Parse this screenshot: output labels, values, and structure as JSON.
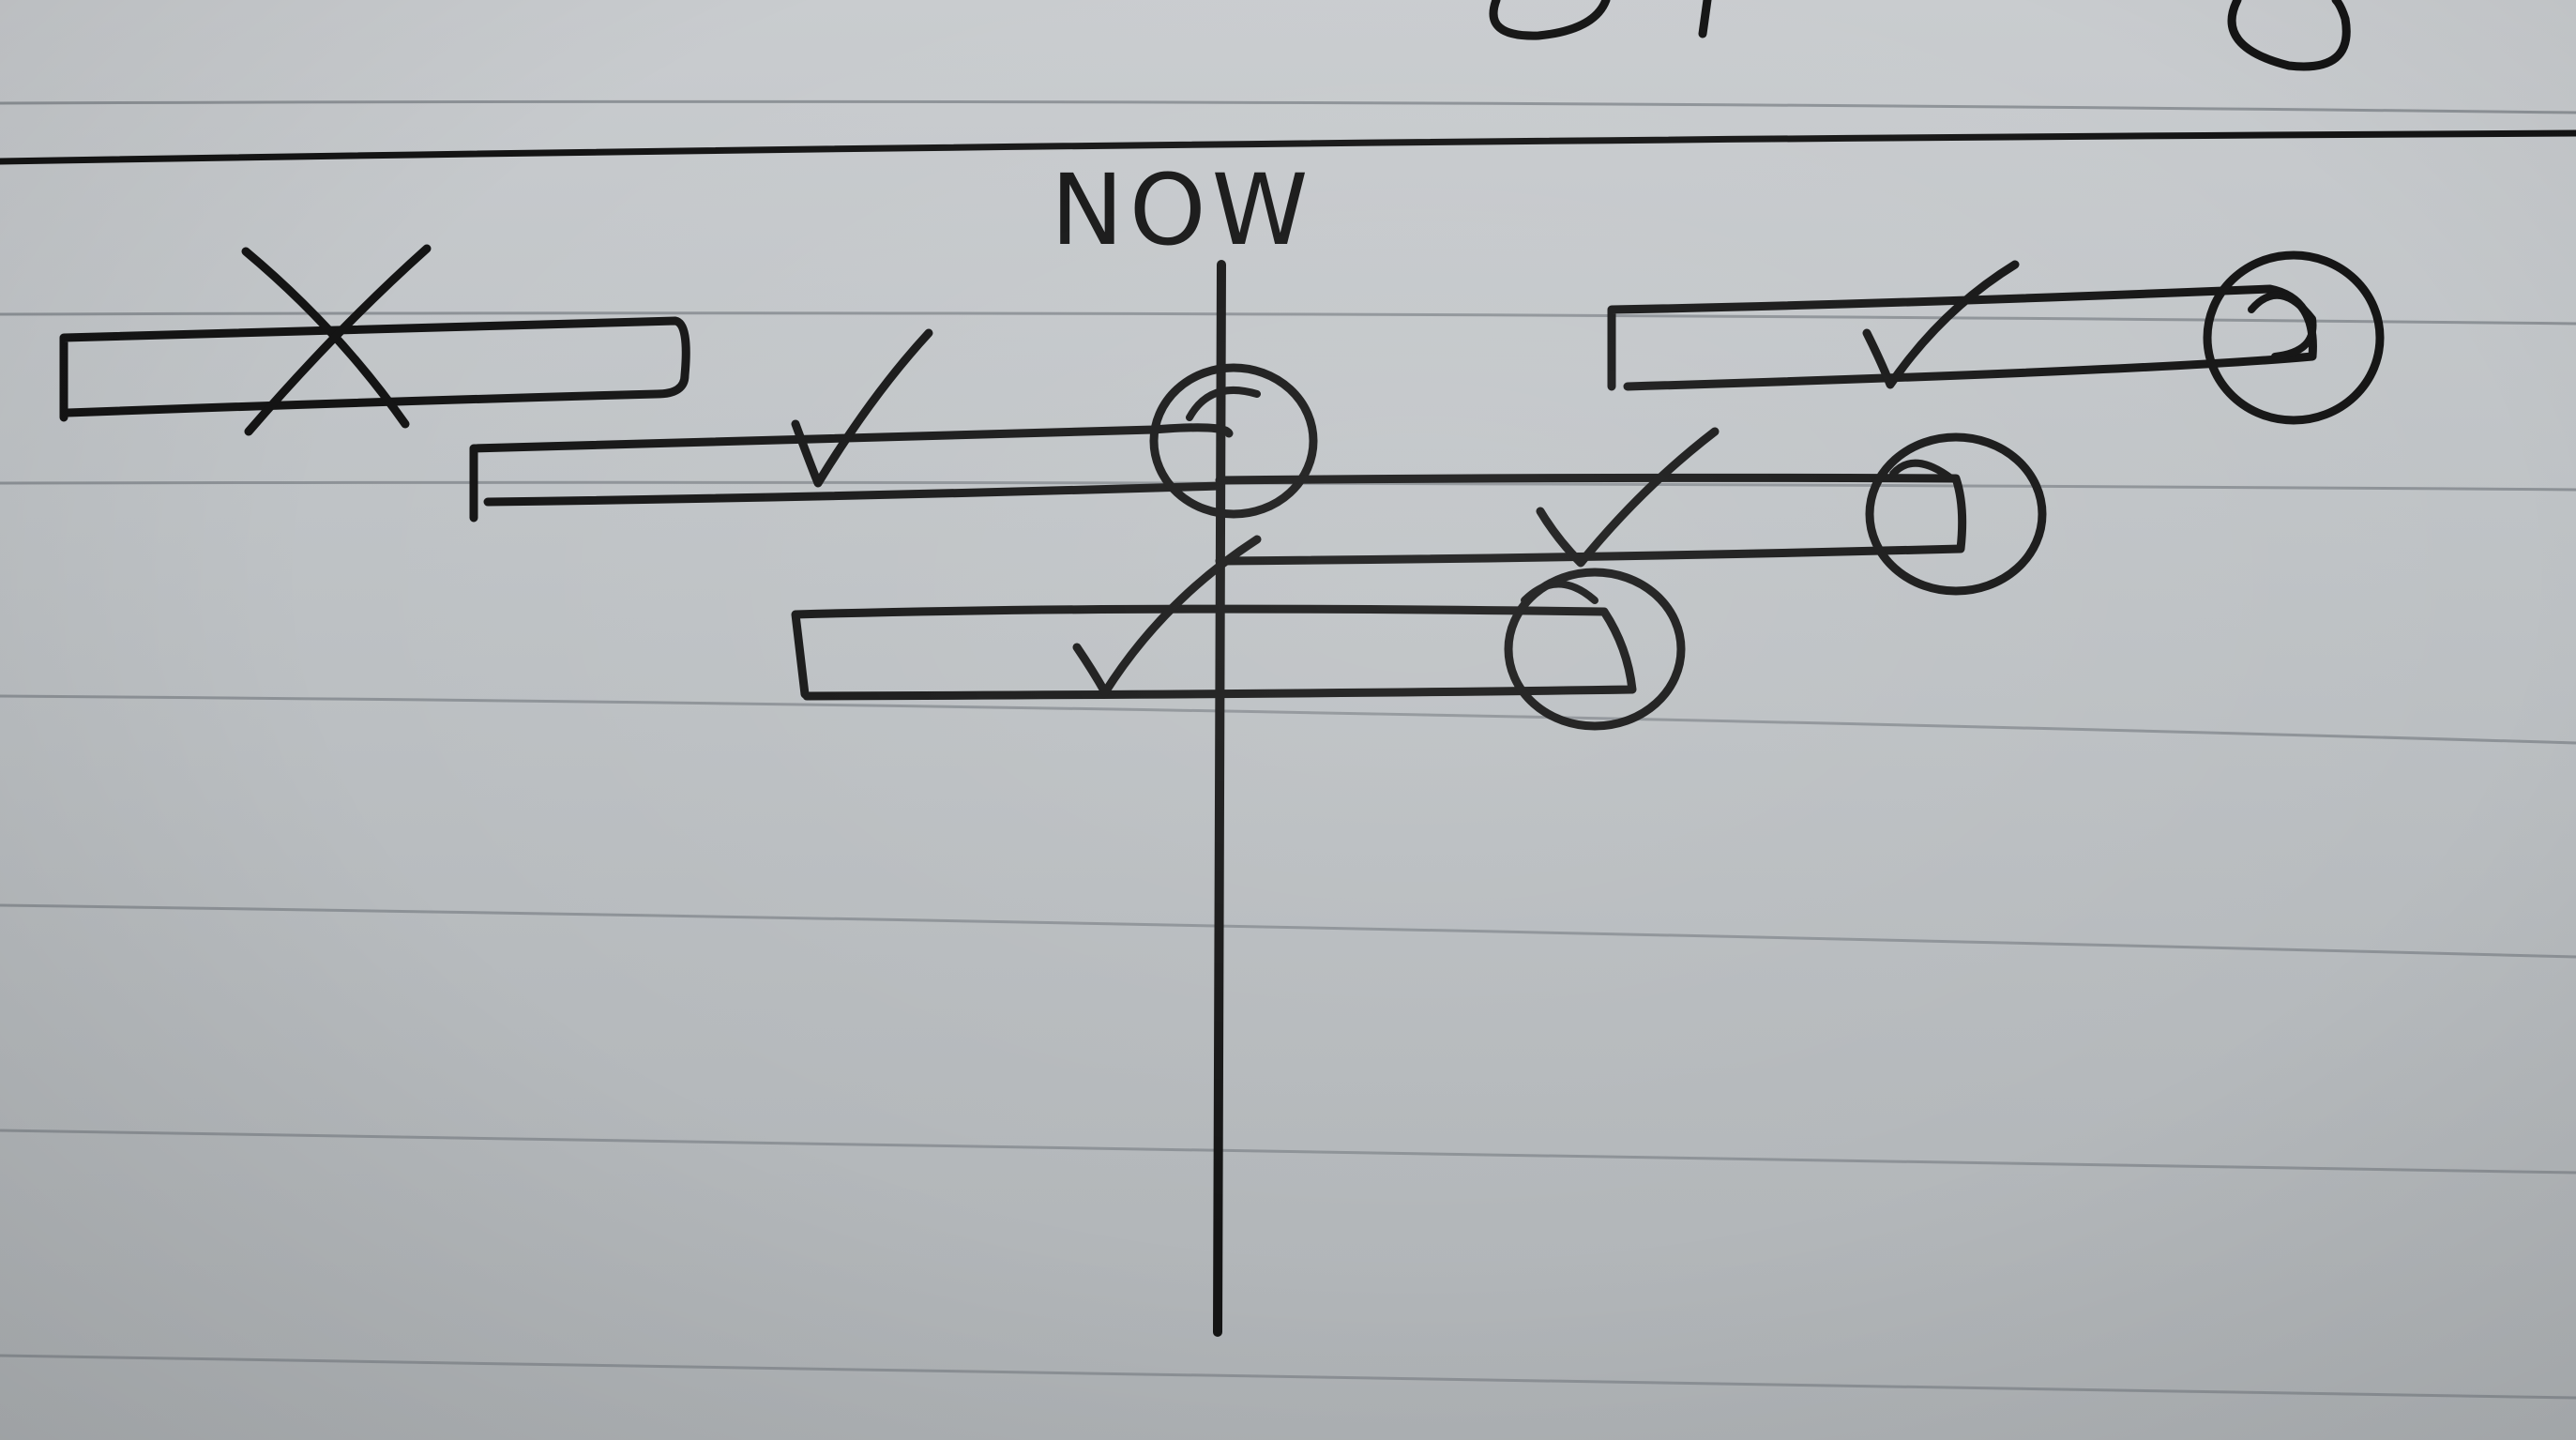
{
  "diagram": {
    "axis_label": "NOW",
    "bars": [
      {
        "name": "bar-1",
        "mark": "cross",
        "end_circled": false
      },
      {
        "name": "bar-2",
        "mark": "check",
        "end_circled": true
      },
      {
        "name": "bar-3",
        "mark": "check",
        "end_circled": true
      },
      {
        "name": "bar-4",
        "mark": "check",
        "end_circled": true
      },
      {
        "name": "bar-5",
        "mark": "check",
        "end_circled": true
      }
    ]
  },
  "colors": {
    "ink": "#141414",
    "paper": "#c3c6c9",
    "ruled_lines": "#8d9297"
  }
}
